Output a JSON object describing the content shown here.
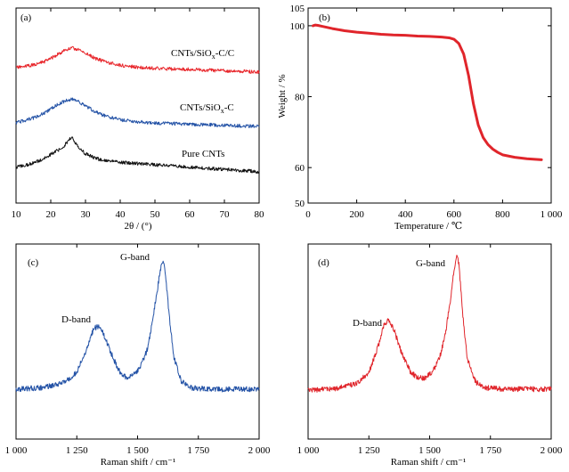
{
  "chart_data": [
    {
      "id": "a",
      "type": "line",
      "panel_label": "(a)",
      "xlabel": "2θ / (°)",
      "ylabel": "",
      "xlim": [
        10,
        80
      ],
      "xticks": [
        "10",
        "20",
        "30",
        "40",
        "50",
        "60",
        "70",
        "80"
      ],
      "y_axis_ticks": "none",
      "series": [
        {
          "name": "CNTs/SiOx-C/C",
          "label_parts": [
            "CNTs/SiO",
            "x",
            "-C/C"
          ],
          "color": "#e8262b",
          "x": [
            10,
            12,
            15,
            18,
            20,
            22,
            24,
            26,
            28,
            30,
            33,
            36,
            40,
            45,
            50,
            55,
            60,
            65,
            70,
            75,
            80
          ],
          "y": [
            0.1,
            0.12,
            0.17,
            0.25,
            0.34,
            0.45,
            0.56,
            0.62,
            0.58,
            0.48,
            0.34,
            0.24,
            0.16,
            0.11,
            0.08,
            0.06,
            0.05,
            0.03,
            0.01,
            0.0,
            -0.02
          ]
        },
        {
          "name": "CNTs/SiOx-C",
          "label_parts": [
            "CNTs/SiO",
            "x",
            "-C"
          ],
          "color": "#2352a6",
          "x": [
            10,
            12,
            15,
            18,
            20,
            22,
            24,
            26,
            28,
            30,
            33,
            36,
            40,
            45,
            50,
            55,
            60,
            65,
            70,
            75,
            80
          ],
          "y": [
            0.05,
            0.1,
            0.18,
            0.3,
            0.42,
            0.54,
            0.63,
            0.68,
            0.62,
            0.5,
            0.34,
            0.22,
            0.13,
            0.08,
            0.05,
            0.03,
            0.01,
            0.0,
            -0.02,
            -0.03,
            -0.04
          ]
        },
        {
          "name": "Pure CNTs",
          "label_parts": [
            "Pure CNTs"
          ],
          "color": "#111111",
          "x": [
            10,
            12,
            15,
            18,
            20,
            22,
            24,
            25,
            26,
            27,
            28,
            30,
            33,
            36,
            40,
            45,
            50,
            55,
            60,
            65,
            70,
            75,
            80
          ],
          "y": [
            0.05,
            0.08,
            0.15,
            0.26,
            0.36,
            0.46,
            0.58,
            0.7,
            0.78,
            0.66,
            0.52,
            0.38,
            0.26,
            0.2,
            0.17,
            0.14,
            0.11,
            0.08,
            0.05,
            0.02,
            0.0,
            -0.03,
            -0.06
          ]
        }
      ]
    },
    {
      "id": "b",
      "type": "line",
      "panel_label": "(b)",
      "xlabel": "Temperature / ℃",
      "ylabel": "Weight / %",
      "xlim": [
        0,
        1000
      ],
      "ylim": [
        50,
        105
      ],
      "xticks": [
        "0",
        "200",
        "400",
        "600",
        "800",
        "1 000"
      ],
      "yticks": [
        "50",
        "60",
        "80",
        "100",
        "105"
      ],
      "series": [
        {
          "color": "#e0252b",
          "x": [
            20,
            30,
            40,
            60,
            100,
            150,
            200,
            250,
            300,
            350,
            400,
            450,
            500,
            550,
            580,
            600,
            620,
            640,
            660,
            680,
            700,
            720,
            740,
            760,
            780,
            800,
            850,
            900,
            960
          ],
          "y": [
            100.0,
            100.2,
            100.1,
            99.8,
            99.2,
            98.6,
            98.2,
            97.9,
            97.6,
            97.4,
            97.3,
            97.1,
            97.0,
            96.8,
            96.6,
            96.2,
            95.0,
            92.0,
            86.0,
            78.0,
            72.0,
            68.5,
            66.5,
            65.2,
            64.3,
            63.6,
            62.9,
            62.5,
            62.2
          ]
        }
      ]
    },
    {
      "id": "c",
      "type": "line",
      "panel_label": "(c)",
      "xlabel": "Raman shift / cm⁻¹",
      "xlim": [
        1000,
        2000
      ],
      "xticks": [
        "1 000",
        "1 250",
        "1 500",
        "1 750",
        "2 000"
      ],
      "y_axis_ticks": "none",
      "annotations": [
        "D-band",
        "G-band"
      ],
      "series": [
        {
          "color": "#2352a6",
          "x": [
            1000,
            1100,
            1200,
            1250,
            1290,
            1320,
            1340,
            1360,
            1390,
            1420,
            1450,
            1480,
            1510,
            1540,
            1560,
            1580,
            1595,
            1605,
            1615,
            1630,
            1650,
            1680,
            1720,
            1800,
            1900,
            2000
          ],
          "y": [
            0.02,
            0.03,
            0.07,
            0.15,
            0.32,
            0.48,
            0.5,
            0.44,
            0.3,
            0.17,
            0.11,
            0.12,
            0.18,
            0.32,
            0.52,
            0.76,
            0.94,
            1.0,
            0.88,
            0.58,
            0.26,
            0.08,
            0.03,
            0.02,
            0.02,
            0.02
          ]
        }
      ]
    },
    {
      "id": "d",
      "type": "line",
      "panel_label": "(d)",
      "xlabel": "Raman shift / cm⁻¹",
      "xlim": [
        1000,
        2000
      ],
      "xticks": [
        "1 000",
        "1 250",
        "1 500",
        "1 750",
        "2 000"
      ],
      "y_axis_ticks": "none",
      "annotations": [
        "D-band",
        "G-band"
      ],
      "series": [
        {
          "color": "#e0252b",
          "x": [
            1000,
            1100,
            1200,
            1250,
            1290,
            1315,
            1335,
            1355,
            1385,
            1420,
            1450,
            1480,
            1510,
            1540,
            1565,
            1585,
            1600,
            1612,
            1622,
            1635,
            1655,
            1690,
            1730,
            1800,
            1900,
            2000
          ],
          "y": [
            0.01,
            0.02,
            0.06,
            0.14,
            0.34,
            0.5,
            0.52,
            0.44,
            0.28,
            0.15,
            0.1,
            0.1,
            0.14,
            0.24,
            0.42,
            0.66,
            0.88,
            1.0,
            0.9,
            0.58,
            0.24,
            0.07,
            0.03,
            0.02,
            0.02,
            0.02
          ]
        }
      ]
    }
  ]
}
